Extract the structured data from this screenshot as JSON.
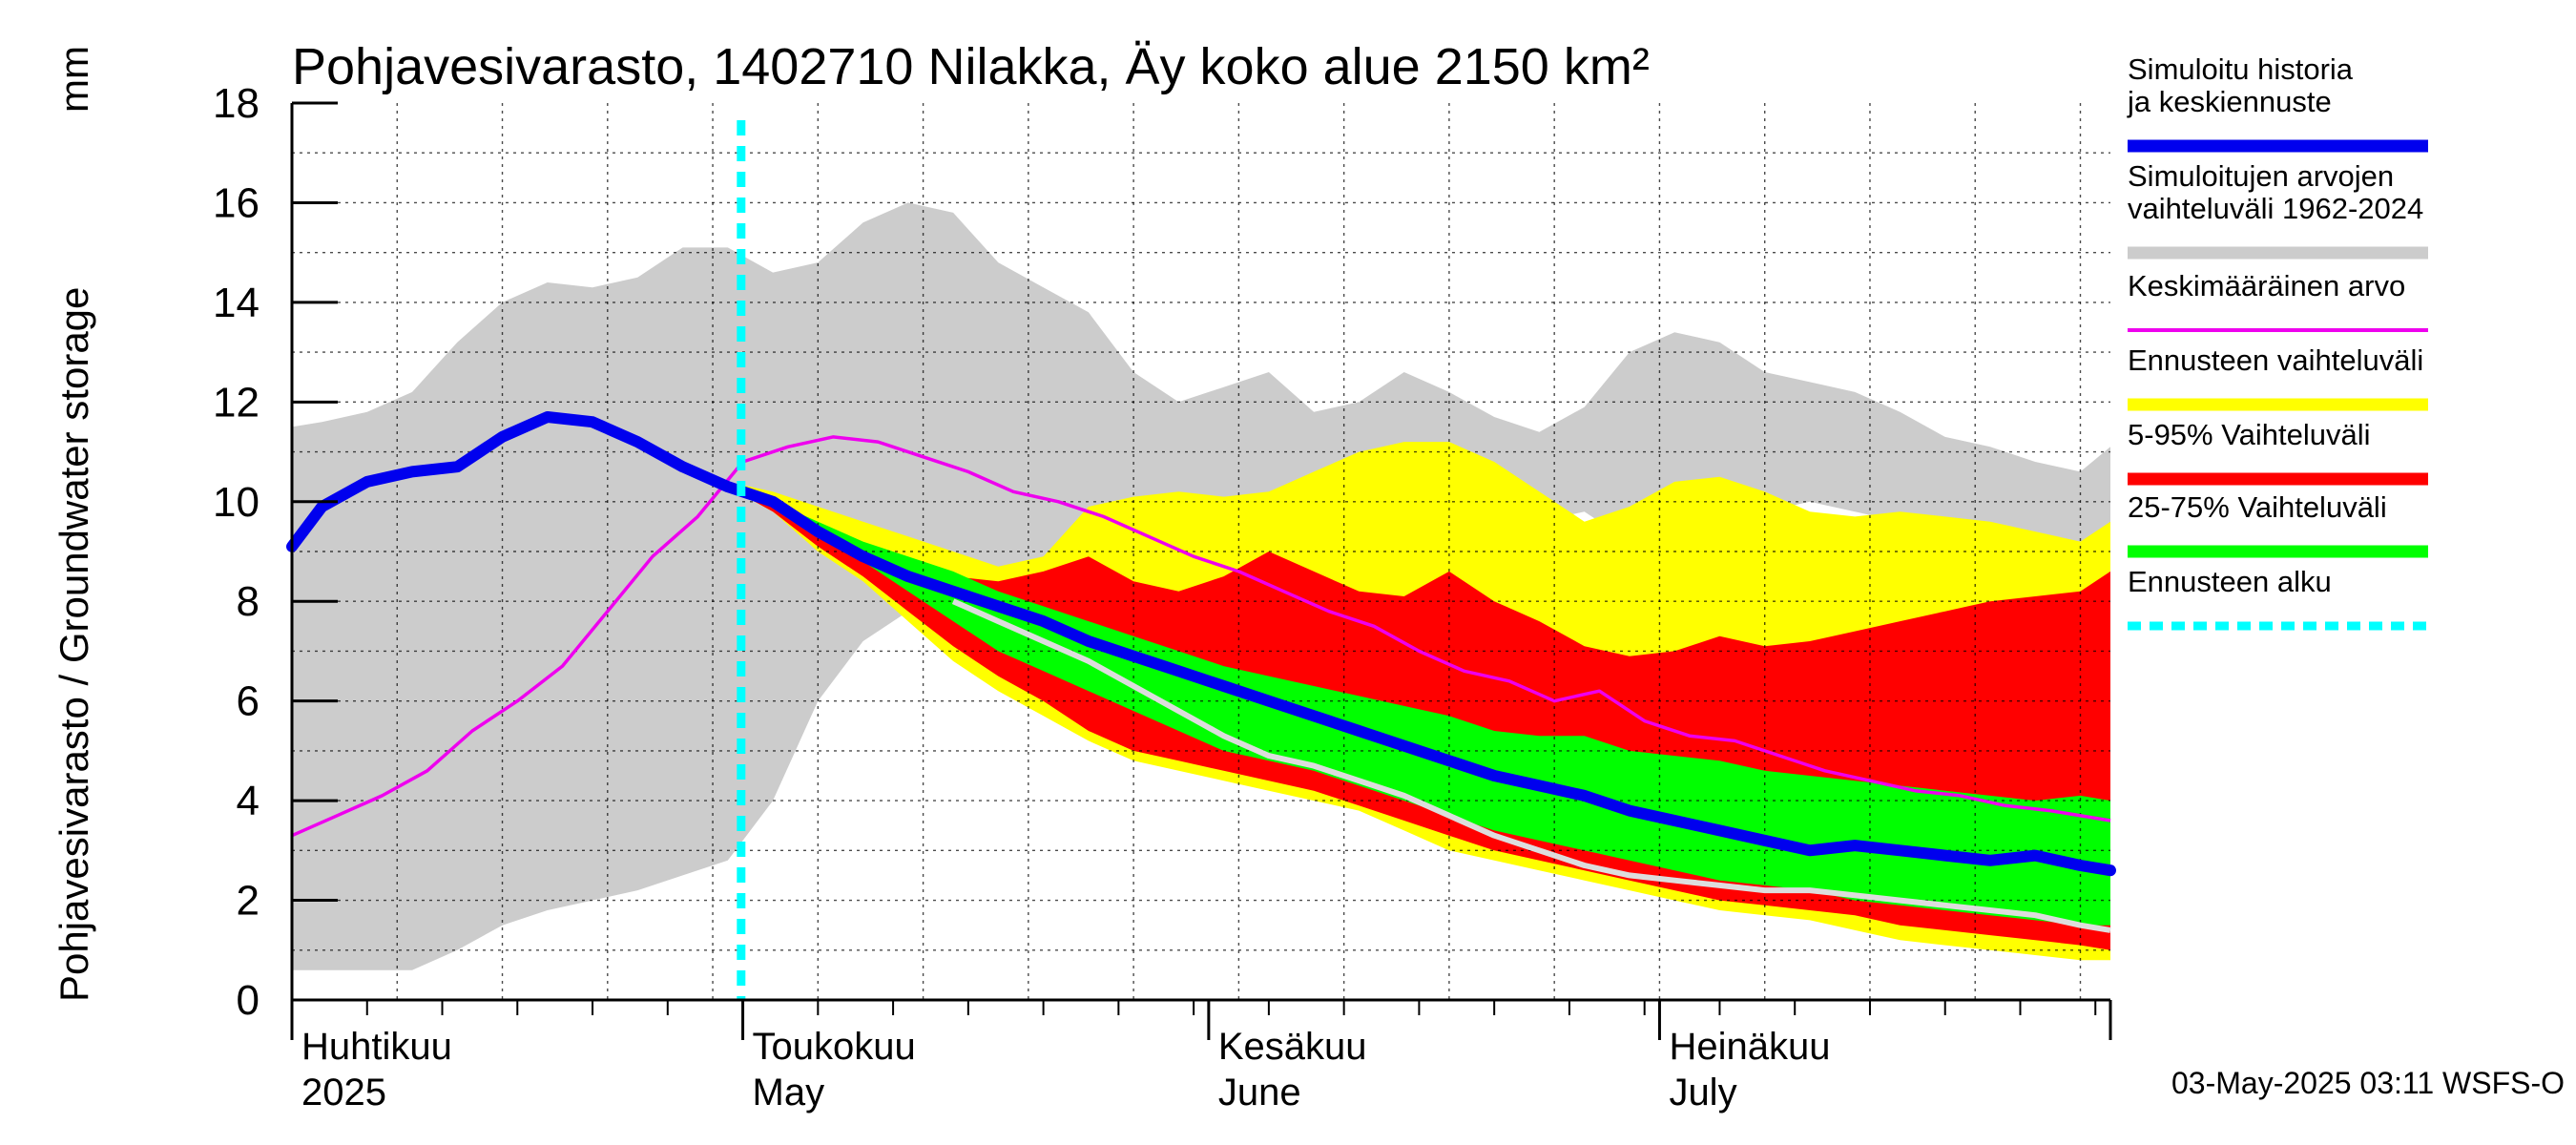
{
  "chart_data": {
    "type": "area",
    "title": "Pohjavesivarasto, 1402710 Nilakka, Äy koko alue 2150 km²",
    "ylabel": "Pohjavesivarasto / Groundwater storage",
    "yunit": "mm",
    "ylim": [
      0,
      18
    ],
    "yticks": [
      "0",
      "2",
      "4",
      "6",
      "8",
      "10",
      "12",
      "14",
      "16",
      "18"
    ],
    "xlim": [
      "2025-04-01",
      "2025-07-31"
    ],
    "months": [
      {
        "label_fi": "Huhtikuu",
        "label_en": "2025",
        "date": "2025-04-01"
      },
      {
        "label_fi": "Toukokuu",
        "label_en": "May",
        "date": "2025-05-01"
      },
      {
        "label_fi": "Kesäkuu",
        "label_en": "June",
        "date": "2025-06-01"
      },
      {
        "label_fi": "Heinäkuu",
        "label_en": "July",
        "date": "2025-07-01"
      }
    ],
    "forecast_start": "2025-04-30",
    "grid": true,
    "legend_position": "right",
    "legend": [
      {
        "label": "Simuloitu historia ja keskiennuste",
        "color": "#0000ee",
        "style": "thick"
      },
      {
        "label": "Simuloitujen arvojen vaihteluväli 1962-2024",
        "color": "#cccccc",
        "style": "thick"
      },
      {
        "label": "Keskimääräinen arvo",
        "color": "#ee00ee",
        "style": "thin"
      },
      {
        "label": "Ennusteen vaihteluväli",
        "color": "#ffff00",
        "style": "thick"
      },
      {
        "label": "5-95% Vaihteluväli",
        "color": "#ff0000",
        "style": "thick"
      },
      {
        "label": "25-75% Vaihteluväli",
        "color": "#00ff00",
        "style": "thick"
      },
      {
        "label": "Ennusteen alku",
        "color": "#00ffff",
        "style": "dashed"
      }
    ],
    "series": [
      {
        "name": "Simuloitujen arvojen vaihteluväli 1962-2024",
        "role": "band",
        "x": [
          "2025-04-01",
          "2025-04-03",
          "2025-04-06",
          "2025-04-09",
          "2025-04-12",
          "2025-04-15",
          "2025-04-18",
          "2025-04-21",
          "2025-04-24",
          "2025-04-27",
          "2025-04-30",
          "2025-05-03",
          "2025-05-06",
          "2025-05-09",
          "2025-05-12",
          "2025-05-15",
          "2025-05-18",
          "2025-05-21",
          "2025-05-24",
          "2025-05-27",
          "2025-05-30",
          "2025-06-02",
          "2025-06-05",
          "2025-06-08",
          "2025-06-11",
          "2025-06-14",
          "2025-06-17",
          "2025-06-20",
          "2025-06-23",
          "2025-06-26",
          "2025-06-29",
          "2025-07-02",
          "2025-07-05",
          "2025-07-08",
          "2025-07-11",
          "2025-07-14",
          "2025-07-17",
          "2025-07-20",
          "2025-07-23",
          "2025-07-26",
          "2025-07-29",
          "2025-07-31"
        ],
        "low": [
          0.6,
          0.6,
          0.6,
          0.6,
          1.0,
          1.5,
          1.8,
          2.0,
          2.2,
          2.5,
          2.8,
          4.0,
          6.0,
          7.2,
          7.8,
          8.0,
          8.3,
          8.8,
          9.2,
          9.8,
          9.6,
          9.0,
          9.2,
          9.4,
          9.6,
          9.4,
          9.8,
          10.0,
          9.6,
          9.8,
          9.2,
          9.4,
          9.6,
          9.8,
          10.0,
          9.8,
          9.6,
          9.4,
          9.4,
          9.2,
          9.2,
          9.4
        ],
        "high": [
          11.5,
          11.6,
          11.8,
          12.2,
          13.2,
          14.0,
          14.4,
          14.3,
          14.5,
          15.1,
          15.1,
          14.6,
          14.8,
          15.6,
          16.0,
          15.8,
          14.8,
          14.3,
          13.8,
          12.6,
          12.0,
          12.3,
          12.6,
          11.8,
          12.0,
          12.6,
          12.2,
          11.7,
          11.4,
          11.9,
          13.0,
          13.4,
          13.2,
          12.6,
          12.4,
          12.2,
          11.8,
          11.3,
          11.1,
          10.8,
          10.6,
          11.1
        ]
      },
      {
        "name": "Ennusteen vaihteluväli",
        "role": "band",
        "x": [
          "2025-04-30",
          "2025-05-03",
          "2025-05-06",
          "2025-05-09",
          "2025-05-12",
          "2025-05-15",
          "2025-05-18",
          "2025-05-21",
          "2025-05-24",
          "2025-05-27",
          "2025-05-30",
          "2025-06-02",
          "2025-06-05",
          "2025-06-08",
          "2025-06-11",
          "2025-06-14",
          "2025-06-17",
          "2025-06-20",
          "2025-06-23",
          "2025-06-26",
          "2025-06-29",
          "2025-07-02",
          "2025-07-05",
          "2025-07-08",
          "2025-07-11",
          "2025-07-14",
          "2025-07-17",
          "2025-07-20",
          "2025-07-23",
          "2025-07-26",
          "2025-07-29",
          "2025-07-31"
        ],
        "low": [
          10.3,
          9.8,
          9.0,
          8.4,
          7.6,
          6.8,
          6.2,
          5.7,
          5.2,
          4.8,
          4.6,
          4.4,
          4.2,
          4.0,
          3.8,
          3.4,
          3.0,
          2.8,
          2.6,
          2.4,
          2.2,
          2.0,
          1.8,
          1.7,
          1.6,
          1.4,
          1.2,
          1.1,
          1.0,
          0.9,
          0.8,
          0.8
        ],
        "high": [
          10.4,
          10.2,
          9.9,
          9.6,
          9.3,
          9.0,
          8.7,
          8.9,
          9.9,
          10.1,
          10.2,
          10.1,
          10.2,
          10.6,
          11.0,
          11.2,
          11.2,
          10.8,
          10.2,
          9.6,
          9.9,
          10.4,
          10.5,
          10.2,
          9.8,
          9.7,
          9.8,
          9.7,
          9.6,
          9.4,
          9.2,
          9.6
        ]
      },
      {
        "name": "5-95% Vaihteluväli",
        "role": "band",
        "x": [
          "2025-04-30",
          "2025-05-03",
          "2025-05-06",
          "2025-05-09",
          "2025-05-12",
          "2025-05-15",
          "2025-05-18",
          "2025-05-21",
          "2025-05-24",
          "2025-05-27",
          "2025-05-30",
          "2025-06-02",
          "2025-06-05",
          "2025-06-08",
          "2025-06-11",
          "2025-06-14",
          "2025-06-17",
          "2025-06-20",
          "2025-06-23",
          "2025-06-26",
          "2025-06-29",
          "2025-07-02",
          "2025-07-05",
          "2025-07-08",
          "2025-07-11",
          "2025-07-14",
          "2025-07-17",
          "2025-07-20",
          "2025-07-23",
          "2025-07-26",
          "2025-07-29",
          "2025-07-31"
        ],
        "low": [
          10.3,
          9.8,
          9.1,
          8.5,
          7.8,
          7.1,
          6.5,
          6.0,
          5.4,
          5.0,
          4.8,
          4.6,
          4.4,
          4.2,
          3.9,
          3.6,
          3.3,
          3.0,
          2.8,
          2.6,
          2.4,
          2.2,
          2.0,
          1.9,
          1.8,
          1.7,
          1.5,
          1.4,
          1.3,
          1.2,
          1.1,
          1.0
        ],
        "high": [
          10.4,
          10.1,
          9.5,
          9.0,
          8.8,
          8.5,
          8.4,
          8.6,
          8.9,
          8.4,
          8.2,
          8.5,
          9.0,
          8.6,
          8.2,
          8.1,
          8.6,
          8.0,
          7.6,
          7.1,
          6.9,
          7.0,
          7.3,
          7.1,
          7.2,
          7.4,
          7.6,
          7.8,
          8.0,
          8.1,
          8.2,
          8.6
        ]
      },
      {
        "name": "25-75% Vaihteluväli",
        "role": "band",
        "x": [
          "2025-04-30",
          "2025-05-03",
          "2025-05-06",
          "2025-05-09",
          "2025-05-12",
          "2025-05-15",
          "2025-05-18",
          "2025-05-21",
          "2025-05-24",
          "2025-05-27",
          "2025-05-30",
          "2025-06-02",
          "2025-06-05",
          "2025-06-08",
          "2025-06-11",
          "2025-06-14",
          "2025-06-17",
          "2025-06-20",
          "2025-06-23",
          "2025-06-26",
          "2025-06-29",
          "2025-07-02",
          "2025-07-05",
          "2025-07-08",
          "2025-07-11",
          "2025-07-14",
          "2025-07-17",
          "2025-07-20",
          "2025-07-23",
          "2025-07-26",
          "2025-07-29",
          "2025-07-31"
        ],
        "low": [
          10.3,
          9.9,
          9.4,
          8.8,
          8.2,
          7.6,
          7.0,
          6.6,
          6.2,
          5.8,
          5.4,
          5.0,
          4.8,
          4.6,
          4.3,
          4.0,
          3.7,
          3.4,
          3.2,
          3.0,
          2.8,
          2.6,
          2.4,
          2.3,
          2.2,
          2.0,
          1.9,
          1.8,
          1.7,
          1.6,
          1.5,
          1.5
        ],
        "high": [
          10.4,
          10.0,
          9.6,
          9.2,
          8.9,
          8.6,
          8.2,
          7.9,
          7.6,
          7.3,
          7.0,
          6.7,
          6.5,
          6.3,
          6.1,
          5.9,
          5.7,
          5.4,
          5.3,
          5.3,
          5.0,
          4.9,
          4.8,
          4.6,
          4.5,
          4.4,
          4.3,
          4.2,
          4.1,
          4.0,
          4.1,
          4.0
        ]
      },
      {
        "name": "Keskimääräinen arvo",
        "role": "line",
        "x": [
          "2025-04-01",
          "2025-04-04",
          "2025-04-07",
          "2025-04-10",
          "2025-04-13",
          "2025-04-16",
          "2025-04-19",
          "2025-04-22",
          "2025-04-25",
          "2025-04-28",
          "2025-05-01",
          "2025-05-04",
          "2025-05-07",
          "2025-05-10",
          "2025-05-13",
          "2025-05-16",
          "2025-05-19",
          "2025-05-22",
          "2025-05-25",
          "2025-05-28",
          "2025-05-31",
          "2025-06-03",
          "2025-06-06",
          "2025-06-09",
          "2025-06-12",
          "2025-06-15",
          "2025-06-18",
          "2025-06-21",
          "2025-06-24",
          "2025-06-27",
          "2025-06-30",
          "2025-07-03",
          "2025-07-06",
          "2025-07-09",
          "2025-07-12",
          "2025-07-15",
          "2025-07-18",
          "2025-07-21",
          "2025-07-24",
          "2025-07-27",
          "2025-07-31"
        ],
        "values": [
          3.3,
          3.7,
          4.1,
          4.6,
          5.4,
          6.0,
          6.7,
          7.8,
          8.9,
          9.7,
          10.8,
          11.1,
          11.3,
          11.2,
          10.9,
          10.6,
          10.2,
          10.0,
          9.7,
          9.3,
          8.9,
          8.6,
          8.2,
          7.8,
          7.5,
          7.0,
          6.6,
          6.4,
          6.0,
          6.2,
          5.6,
          5.3,
          5.2,
          4.9,
          4.6,
          4.4,
          4.2,
          4.1,
          3.9,
          3.8,
          3.6
        ]
      },
      {
        "name": "Simuloitu historia ja keskiennuste",
        "role": "line",
        "x": [
          "2025-04-01",
          "2025-04-03",
          "2025-04-06",
          "2025-04-09",
          "2025-04-12",
          "2025-04-15",
          "2025-04-18",
          "2025-04-21",
          "2025-04-24",
          "2025-04-27",
          "2025-04-30",
          "2025-05-03",
          "2025-05-06",
          "2025-05-09",
          "2025-05-12",
          "2025-05-15",
          "2025-05-18",
          "2025-05-21",
          "2025-05-24",
          "2025-05-27",
          "2025-05-30",
          "2025-06-02",
          "2025-06-05",
          "2025-06-08",
          "2025-06-11",
          "2025-06-14",
          "2025-06-17",
          "2025-06-20",
          "2025-06-23",
          "2025-06-26",
          "2025-06-29",
          "2025-07-02",
          "2025-07-05",
          "2025-07-08",
          "2025-07-11",
          "2025-07-14",
          "2025-07-17",
          "2025-07-20",
          "2025-07-23",
          "2025-07-26",
          "2025-07-29",
          "2025-07-31"
        ],
        "values": [
          9.1,
          9.9,
          10.4,
          10.6,
          10.7,
          11.3,
          11.7,
          11.6,
          11.2,
          10.7,
          10.3,
          10.0,
          9.4,
          8.9,
          8.5,
          8.2,
          7.9,
          7.6,
          7.2,
          6.9,
          6.6,
          6.3,
          6.0,
          5.7,
          5.4,
          5.1,
          4.8,
          4.5,
          4.3,
          4.1,
          3.8,
          3.6,
          3.4,
          3.2,
          3.0,
          3.1,
          3.0,
          2.9,
          2.8,
          2.9,
          2.7,
          2.6
        ]
      },
      {
        "name": "median",
        "role": "line-light",
        "x": [
          "2025-05-15",
          "2025-05-18",
          "2025-05-21",
          "2025-05-24",
          "2025-05-27",
          "2025-05-30",
          "2025-06-02",
          "2025-06-05",
          "2025-06-08",
          "2025-06-11",
          "2025-06-14",
          "2025-06-17",
          "2025-06-20",
          "2025-06-23",
          "2025-06-26",
          "2025-06-29",
          "2025-07-02",
          "2025-07-05",
          "2025-07-08",
          "2025-07-11",
          "2025-07-14",
          "2025-07-17",
          "2025-07-20",
          "2025-07-23",
          "2025-07-26",
          "2025-07-29",
          "2025-07-31"
        ],
        "values": [
          8.0,
          7.6,
          7.2,
          6.8,
          6.3,
          5.8,
          5.3,
          4.9,
          4.7,
          4.4,
          4.1,
          3.7,
          3.3,
          3.0,
          2.7,
          2.5,
          2.4,
          2.3,
          2.2,
          2.2,
          2.1,
          2.0,
          1.9,
          1.8,
          1.7,
          1.5,
          1.4
        ]
      }
    ]
  },
  "footer": {
    "timestamp": "03-May-2025 03:11 WSFS-O"
  }
}
